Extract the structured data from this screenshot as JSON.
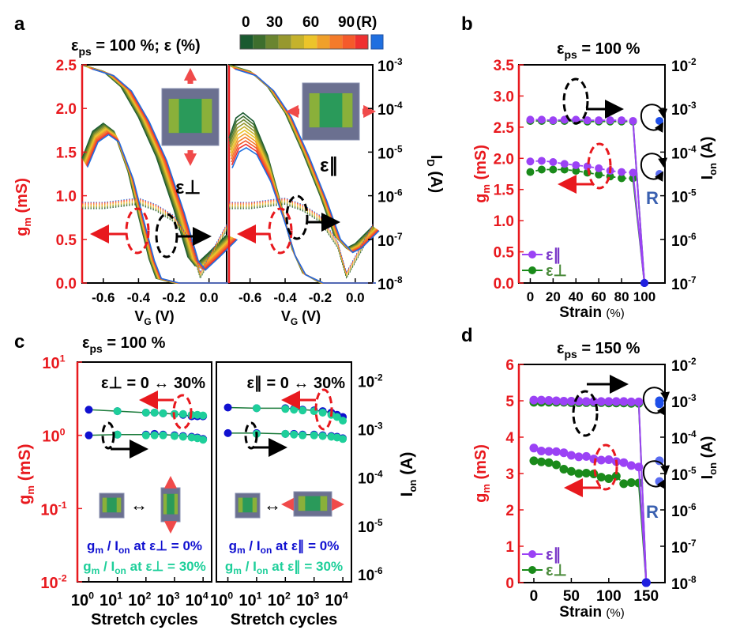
{
  "figure": {
    "panel_labels": [
      "a",
      "b",
      "c",
      "d"
    ],
    "colorbar": {
      "ticks": [
        "0",
        "30",
        "60",
        "90",
        "(R)"
      ],
      "colors": [
        "#1a5a30",
        "#3d6e2d",
        "#6a8530",
        "#97982e",
        "#c5b22c",
        "#ecc42a",
        "#f0a02a",
        "#f47b2a",
        "#f55a2b",
        "#ef3030"
      ],
      "release_color": "#1f6fe0"
    }
  },
  "chart_data": [
    {
      "id": "a-perp",
      "type": "line",
      "title": "εps = 100 %; ε (%)",
      "xlabel": "VG (V)",
      "ylabel": "gm (mS)",
      "y2label": "ID (A)",
      "xlim": [
        -0.72,
        0.1
      ],
      "ylim": [
        0,
        2.5
      ],
      "y2lim_log10": [
        -8,
        -3
      ],
      "xticks": [
        "-0.6",
        "-0.4",
        "-0.2",
        "0.0"
      ],
      "yticks": [
        "0.0",
        "0.5",
        "1.0",
        "1.5",
        "2.0",
        "2.5"
      ],
      "y2ticks": [
        "10-8",
        "10-7",
        "10-6",
        "10-5",
        "10-4",
        "10-3"
      ],
      "annotation": "ε⊥",
      "strain_levels": [
        0,
        10,
        20,
        30,
        40,
        50,
        60,
        70,
        80,
        90,
        "R"
      ],
      "gm_peak": {
        "x": -0.6,
        "y_range": [
          1.7,
          1.83
        ]
      },
      "id_curve_x": [
        -0.72,
        -0.6,
        -0.5,
        -0.4,
        -0.3,
        -0.2,
        -0.12,
        -0.08,
        0.0,
        0.1
      ],
      "id_curve_log10": [
        -3.0,
        -3.15,
        -3.5,
        -4.2,
        -5.1,
        -6.3,
        -7.4,
        -7.6,
        -7.3,
        -6.9
      ]
    },
    {
      "id": "a-par",
      "type": "line",
      "xlabel": "VG (V)",
      "xlim": [
        -0.72,
        0.1
      ],
      "ylim": [
        0,
        2.5
      ],
      "xticks": [
        "-0.6",
        "-0.4",
        "-0.2",
        "0.0"
      ],
      "annotation": "ε∥",
      "gm_peak": {
        "x": -0.65,
        "y_range": [
          1.55,
          1.95
        ]
      },
      "id_curve_x": [
        -0.72,
        -0.6,
        -0.5,
        -0.4,
        -0.3,
        -0.2,
        -0.12,
        -0.05,
        0.0,
        0.1
      ],
      "id_curve_log10": [
        -3.0,
        -3.15,
        -3.5,
        -4.1,
        -5.0,
        -6.0,
        -6.9,
        -7.2,
        -7.1,
        -6.7
      ]
    },
    {
      "id": "b",
      "type": "line",
      "title": "εps = 100 %",
      "xlabel": "Strain (%)",
      "ylabel": "gm (mS)",
      "y2label": "Ion (A)",
      "xlim": [
        -10,
        118
      ],
      "ylim": [
        0,
        3.5
      ],
      "y2lim_log10": [
        -7,
        -2
      ],
      "xticks": [
        "0",
        "20",
        "40",
        "60",
        "80",
        "100"
      ],
      "yticks": [
        "0.0",
        "0.5",
        "1.0",
        "1.5",
        "2.0",
        "2.5",
        "3.0",
        "3.5"
      ],
      "y2ticks": [
        "10-7",
        "10-6",
        "10-5",
        "10-4",
        "10-3",
        "10-2"
      ],
      "release_label": "R",
      "x": [
        0,
        10,
        20,
        30,
        40,
        50,
        60,
        70,
        80,
        90,
        100
      ],
      "series": [
        {
          "name": "ε∥ gm",
          "color": "#9b42f5",
          "values": [
            1.95,
            1.96,
            1.94,
            1.91,
            1.89,
            1.87,
            1.84,
            1.8,
            1.78,
            1.77,
            0
          ],
          "release": 1.75
        },
        {
          "name": "ε⊥ gm",
          "color": "#1a8a1a",
          "values": [
            1.78,
            1.82,
            1.82,
            1.82,
            1.8,
            1.77,
            1.74,
            1.71,
            1.68,
            1.68,
            0
          ],
          "release": null
        },
        {
          "name": "ε∥ Ion",
          "color": "#9b42f5",
          "values": [
            2.62,
            2.62,
            2.61,
            2.62,
            2.62,
            2.61,
            2.61,
            2.61,
            2.61,
            2.6,
            0
          ],
          "release": 2.6
        },
        {
          "name": "ε⊥ Ion",
          "color": "#1a8a1a",
          "values": [
            2.6,
            2.6,
            2.6,
            2.6,
            2.6,
            2.59,
            2.59,
            2.59,
            2.59,
            2.59,
            0
          ],
          "release": null
        }
      ],
      "legend": [
        "ε∥",
        "ε⊥"
      ],
      "legend_position": "bottom-left"
    },
    {
      "id": "c-perp",
      "type": "scatter",
      "title": "εps = 100 %",
      "xlabel": "Stretch cycles",
      "ylabel": "gm (mS)",
      "y2label": "Ion (A)",
      "xlim_log10": [
        -0.4,
        4.3
      ],
      "ylim_log10": [
        -2,
        1
      ],
      "y2lim_log10": [
        -6.2,
        -1.6
      ],
      "xticks": [
        "10^0",
        "10^1",
        "10^2",
        "10^3",
        "10^4"
      ],
      "yticks": [
        "10^-2",
        "10^-1",
        "10^0",
        "10^1"
      ],
      "y2ticks": [
        "10^-6",
        "10^-5",
        "10^-4",
        "10^-3",
        "10^-2"
      ],
      "annotation": "ε⊥ = 0 ↔ 30%",
      "x_log10": [
        0,
        1,
        2,
        2.3,
        2.6,
        3,
        3.3,
        3.6,
        3.8,
        4
      ],
      "series": [
        {
          "name": "gm at ε⊥ = 0%",
          "color": "#1010d0",
          "log10_values": [
            0.35,
            0.33,
            0.31,
            0.31,
            0.3,
            0.29,
            0.28,
            0.26,
            0.26,
            0.26
          ]
        },
        {
          "name": "gm at ε⊥ = 30%",
          "color": "#1ecf9a",
          "log10_values": [
            0.34,
            0.33,
            0.31,
            0.31,
            0.3,
            0.29,
            0.29,
            0.28,
            0.28,
            0.27
          ]
        },
        {
          "name": "Ion at ε⊥ = 0%",
          "color": "#1010d0",
          "log10_values": [
            0.0,
            0.01,
            0.01,
            0.02,
            0.01,
            0.0,
            -0.01,
            -0.02,
            -0.03,
            -0.05
          ]
        },
        {
          "name": "Ion at ε⊥ = 30%",
          "color": "#1ecf9a",
          "log10_values": [
            0.0,
            0.01,
            0.0,
            0.0,
            0.0,
            -0.01,
            -0.02,
            -0.03,
            -0.04,
            -0.06
          ]
        }
      ],
      "legend": [
        "gm / Ion at ε⊥ = 0%",
        "gm / Ion at ε⊥ = 30%"
      ],
      "legend_position": "bottom-center"
    },
    {
      "id": "c-par",
      "type": "scatter",
      "xlabel": "Stretch cycles",
      "xlim_log10": [
        -0.4,
        4.3
      ],
      "xticks": [
        "10^0",
        "10^1",
        "10^2",
        "10^3",
        "10^4"
      ],
      "annotation": "ε∥ = 0 ↔ 30%",
      "x_log10": [
        0,
        1,
        2,
        2.3,
        2.6,
        3,
        3.3,
        3.6,
        3.8,
        4
      ],
      "series": [
        {
          "name": "gm at ε∥ = 0%",
          "color": "#1010d0",
          "log10_values": [
            0.38,
            0.37,
            0.37,
            0.36,
            0.35,
            0.34,
            0.33,
            0.31,
            0.28,
            0.25
          ]
        },
        {
          "name": "gm at ε∥ = 30%",
          "color": "#1ecf9a",
          "log10_values": [
            0.37,
            0.37,
            0.36,
            0.35,
            0.34,
            0.33,
            0.31,
            0.28,
            0.25,
            0.2
          ]
        },
        {
          "name": "Ion at ε∥ = 0%",
          "color": "#1010d0",
          "log10_values": [
            0.03,
            0.03,
            0.02,
            0.02,
            0.01,
            0.01,
            0.0,
            -0.01,
            -0.02,
            -0.04
          ]
        },
        {
          "name": "Ion at ε∥ = 30%",
          "color": "#1ecf9a",
          "log10_values": [
            0.02,
            0.02,
            0.02,
            0.01,
            0.0,
            0.0,
            -0.01,
            -0.02,
            -0.03,
            -0.05
          ]
        }
      ],
      "legend": [
        "gm / Ion at ε∥ = 0%",
        "gm / Ion at ε∥ = 30%"
      ],
      "legend_position": "bottom-center"
    },
    {
      "id": "d",
      "type": "line",
      "title": "εps = 150 %",
      "xlabel": "Strain (%)",
      "ylabel": "gm (mS)",
      "y2label": "Ion (A)",
      "xlim": [
        -20,
        175
      ],
      "ylim": [
        0,
        6
      ],
      "y2lim_log10": [
        -8,
        -2
      ],
      "xticks": [
        "0",
        "50",
        "100",
        "150"
      ],
      "yticks": [
        "0",
        "1",
        "2",
        "3",
        "4",
        "5",
        "6"
      ],
      "y2ticks": [
        "10-8",
        "10-7",
        "10-6",
        "10-5",
        "10-4",
        "10-3",
        "10-2"
      ],
      "release_label": "R",
      "x": [
        0,
        10,
        20,
        30,
        40,
        50,
        60,
        70,
        80,
        90,
        100,
        110,
        120,
        130,
        140,
        150
      ],
      "series": [
        {
          "name": "ε∥ gm",
          "color": "#9b42f5",
          "values": [
            3.7,
            3.62,
            3.61,
            3.6,
            3.57,
            3.5,
            3.46,
            3.47,
            3.4,
            3.37,
            3.38,
            3.33,
            3.3,
            3.22,
            3.18,
            0
          ],
          "release": 3.35
        },
        {
          "name": "ε⊥ gm",
          "color": "#1a8a1a",
          "values": [
            3.35,
            3.32,
            3.3,
            3.24,
            3.12,
            3.06,
            3.0,
            3.01,
            2.99,
            2.9,
            2.86,
            2.93,
            2.72,
            2.75,
            2.74,
            0
          ],
          "release": 2.78
        },
        {
          "name": "ε∥ Ion",
          "color": "#9b42f5",
          "values": [
            5.02,
            5.02,
            5.01,
            5.0,
            4.99,
            4.99,
            4.99,
            4.98,
            4.98,
            4.98,
            4.98,
            4.98,
            4.98,
            4.97,
            4.97,
            0
          ],
          "release": 5.0
        },
        {
          "name": "ε⊥ Ion",
          "color": "#1a8a1a",
          "values": [
            4.96,
            4.96,
            4.96,
            4.96,
            4.96,
            4.95,
            4.95,
            4.95,
            4.95,
            4.95,
            4.94,
            4.94,
            4.94,
            4.93,
            4.93,
            0
          ],
          "release": 4.92
        }
      ],
      "legend": [
        "ε∥",
        "ε⊥"
      ],
      "legend_position": "bottom-left"
    }
  ]
}
